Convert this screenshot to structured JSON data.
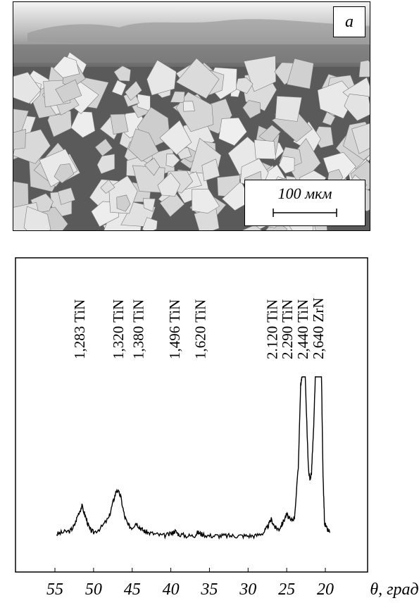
{
  "micrograph": {
    "panel_label": "a",
    "scale_bar_label": "100 мкм"
  },
  "chart_data": {
    "type": "line",
    "x_axis_label": "θ, град",
    "x_ticks": [
      "55",
      "50",
      "45",
      "40",
      "35",
      "30",
      "25",
      "20"
    ],
    "xlim": [
      55,
      16
    ],
    "y_axis_label": "",
    "peak_labels": [
      {
        "text": "1,283 TiN",
        "x": 51.8
      },
      {
        "text": "1,320 TiN",
        "x": 46.8
      },
      {
        "text": "1,380 TiN",
        "x": 44.2
      },
      {
        "text": "1,496 TiN",
        "x": 39.5
      },
      {
        "text": "1,620 TiN",
        "x": 36.2
      },
      {
        "text": "2.120 TiN",
        "x": 26.9
      },
      {
        "text": "2.290 TiN",
        "x": 24.9
      },
      {
        "text": "2,440 TiN",
        "x": 22.9
      },
      {
        "text": "2,640 ZrN",
        "x": 20.9
      }
    ],
    "series": [
      {
        "x": [
          54.8,
          54,
          53,
          52.5,
          52,
          51.5,
          51,
          50.5,
          50,
          49,
          48,
          47.5,
          47,
          46.5,
          46,
          45.5,
          45,
          44.5,
          44,
          43.5,
          43,
          42,
          41,
          40,
          39.5,
          39,
          38,
          37,
          36.5,
          36,
          35,
          34,
          33,
          32,
          31,
          30,
          29,
          28,
          27.5,
          27,
          26.5,
          26,
          25.5,
          25,
          24.5,
          24,
          23.5,
          23.2,
          23.0,
          22.8,
          22.6,
          22.2,
          22.0,
          21.8,
          21.5,
          21.3,
          21.1,
          20.9,
          20.7,
          20.5,
          20.3,
          20.1,
          19.8,
          19.4
        ],
        "y": [
          5,
          6,
          7,
          10,
          17,
          22,
          15,
          8,
          6,
          9,
          15,
          24,
          32,
          28,
          16,
          10,
          9,
          12,
          9,
          7,
          6,
          5,
          4,
          5,
          7,
          5,
          4,
          4,
          6,
          5,
          4,
          4,
          4,
          4,
          4,
          4,
          4,
          6,
          9,
          14,
          9,
          8,
          12,
          17,
          13,
          15,
          45,
          95,
          100,
          100,
          100,
          45,
          38,
          42,
          70,
          100,
          100,
          100,
          100,
          100,
          40,
          12,
          8,
          6
        ]
      }
    ]
  }
}
